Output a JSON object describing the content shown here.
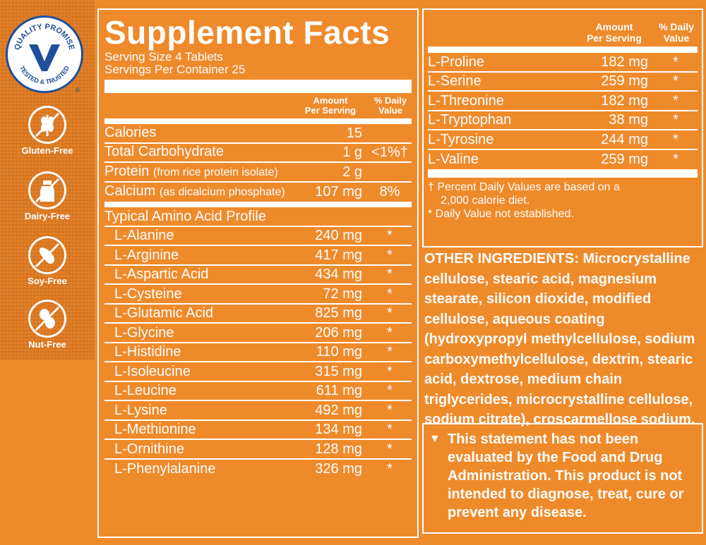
{
  "badge": {
    "top_text": "QUALITY PROMISE",
    "bottom_text": "TESTED & TRUSTED",
    "registered": "®"
  },
  "free_from": [
    {
      "label": "Gluten-Free",
      "icon": "wheat-icon"
    },
    {
      "label": "Dairy-Free",
      "icon": "milk-bottle-icon"
    },
    {
      "label": "Soy-Free",
      "icon": "soybean-icon"
    },
    {
      "label": "Nut-Free",
      "icon": "peanut-icon"
    }
  ],
  "facts": {
    "title": "Supplement Facts",
    "serving_size": "Serving Size 4 Tablets",
    "servings_per_container": "Servings Per Container 25",
    "col_amount_1": "Amount",
    "col_amount_2": "Per Serving",
    "col_dv_1": "% Daily",
    "col_dv_2": "Value",
    "nutrients": [
      {
        "name": "Calories",
        "note": "",
        "amount": "15",
        "dv": ""
      },
      {
        "name": "Total Carbohydrate",
        "note": "",
        "amount": "1 g",
        "dv": "<1%†"
      },
      {
        "name": "Protein",
        "note": "(from rice protein isolate)",
        "amount": "2 g",
        "dv": ""
      },
      {
        "name": "Calcium",
        "note": "(as dicalcium phosphate)",
        "amount": "107 mg",
        "dv": "8%"
      }
    ],
    "amino_heading": "Typical Amino Acid Profile",
    "amino_acids": [
      {
        "name": "L-Alanine",
        "amount": "240 mg",
        "dv": "*"
      },
      {
        "name": "L-Arginine",
        "amount": "417 mg",
        "dv": "*"
      },
      {
        "name": "L-Aspartic Acid",
        "amount": "434 mg",
        "dv": "*"
      },
      {
        "name": "L-Cysteine",
        "amount": "72 mg",
        "dv": "*"
      },
      {
        "name": "L-Glutamic Acid",
        "amount": "825 mg",
        "dv": "*"
      },
      {
        "name": "L-Glycine",
        "amount": "206 mg",
        "dv": "*"
      },
      {
        "name": "L-Histidine",
        "amount": "110 mg",
        "dv": "*"
      },
      {
        "name": "L-Isoleucine",
        "amount": "315 mg",
        "dv": "*"
      },
      {
        "name": "L-Leucine",
        "amount": "611 mg",
        "dv": "*"
      },
      {
        "name": "L-Lysine",
        "amount": "492 mg",
        "dv": "*"
      },
      {
        "name": "L-Methionine",
        "amount": "134 mg",
        "dv": "*"
      },
      {
        "name": "L-Ornithine",
        "amount": "128 mg",
        "dv": "*"
      },
      {
        "name": "L-Phenylalanine",
        "amount": "326 mg",
        "dv": "*"
      }
    ],
    "amino_acids_cont": [
      {
        "name": "L-Proline",
        "amount": "182 mg",
        "dv": "*"
      },
      {
        "name": "L-Serine",
        "amount": "259 mg",
        "dv": "*"
      },
      {
        "name": "L-Threonine",
        "amount": "182 mg",
        "dv": "*"
      },
      {
        "name": "L-Tryptophan",
        "amount": "38 mg",
        "dv": "*"
      },
      {
        "name": "L-Tyrosine",
        "amount": "244 mg",
        "dv": "*"
      },
      {
        "name": "L-Valine",
        "amount": "259 mg",
        "dv": "*"
      }
    ],
    "footnote_1a": "† Percent Daily Values are based on a",
    "footnote_1b": "2,000 calorie diet.",
    "footnote_2": "* Daily Value not established."
  },
  "other_ingredients": {
    "label": "OTHER INGREDIENTS:",
    "text": "Microcrystalline cellulose, stearic acid, magnesium stearate, silicon dioxide, modified cellulose, aqueous coating (hydroxypropyl methylcellulose, sodium carboxymethylcellulose, dextrin, stearic acid, dextrose, medium chain triglycerides, microcrystalline cellulose, sodium citrate), croscarmellose sodium."
  },
  "statement": {
    "mark": "▼",
    "text": "This statement has not been evaluated by the Food and Drug Administration. This product is not intended to diagnose, treat, cure or prevent any disease."
  },
  "colors": {
    "background": "#ef8a2a",
    "sidebar": "#e07a20",
    "badge_blue": "#1f4f9c",
    "text": "#ffffff"
  }
}
